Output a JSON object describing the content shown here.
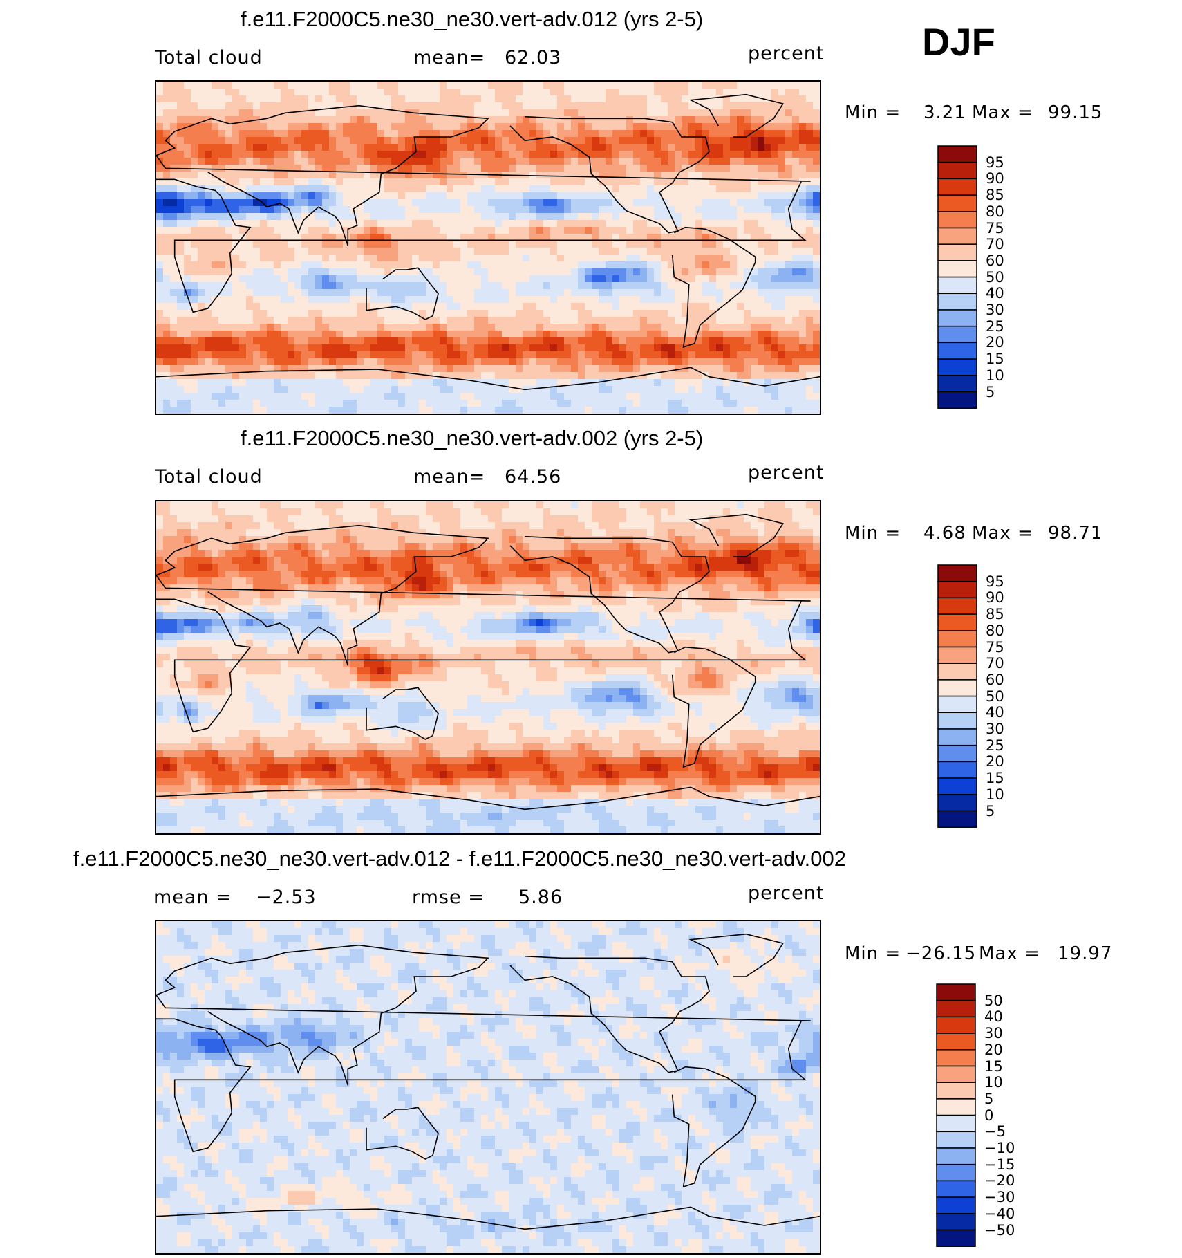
{
  "season": "DJF",
  "chart_data": [
    {
      "type": "heatmap",
      "title": "f.e11.F2000C5.ne30_ne30.vert-adv.012 (yrs 2-5)",
      "variable": "Total cloud",
      "stat_left": "mean=",
      "stat_left_value": "62.03",
      "units": "percent",
      "min_label": "Min =",
      "min_value": "3.21",
      "max_label": "Max =",
      "max_value": "99.15",
      "colorbar_levels": [
        "95",
        "90",
        "85",
        "80",
        "75",
        "70",
        "60",
        "50",
        "40",
        "30",
        "25",
        "20",
        "15",
        "10",
        "5"
      ],
      "colorbar_colors": [
        "#8b0a0a",
        "#b8200b",
        "#d9390f",
        "#ec5a24",
        "#f47e4e",
        "#f8a37e",
        "#fbcab0",
        "#fde8dc",
        "#dbe7f8",
        "#b7d0f6",
        "#8db2f2",
        "#5f8eee",
        "#3064e6",
        "#0d40d4",
        "#062aa3",
        "#021580"
      ],
      "range": [
        0,
        100
      ]
    },
    {
      "type": "heatmap",
      "title": "f.e11.F2000C5.ne30_ne30.vert-adv.002 (yrs 2-5)",
      "variable": "Total cloud",
      "stat_left": "mean=",
      "stat_left_value": "64.56",
      "units": "percent",
      "min_label": "Min =",
      "min_value": "4.68",
      "max_label": "Max =",
      "max_value": "98.71",
      "colorbar_levels": [
        "95",
        "90",
        "85",
        "80",
        "75",
        "70",
        "60",
        "50",
        "40",
        "30",
        "25",
        "20",
        "15",
        "10",
        "5"
      ],
      "colorbar_colors": [
        "#8b0a0a",
        "#b8200b",
        "#d9390f",
        "#ec5a24",
        "#f47e4e",
        "#f8a37e",
        "#fbcab0",
        "#fde8dc",
        "#dbe7f8",
        "#b7d0f6",
        "#8db2f2",
        "#5f8eee",
        "#3064e6",
        "#0d40d4",
        "#062aa3",
        "#021580"
      ],
      "range": [
        0,
        100
      ]
    },
    {
      "type": "heatmap",
      "title": "f.e11.F2000C5.ne30_ne30.vert-adv.012 - f.e11.F2000C5.ne30_ne30.vert-adv.002",
      "stat_left": "mean =",
      "stat_left_value": "−2.53",
      "stat_right": "rmse =",
      "stat_right_value": "5.86",
      "units": "percent",
      "min_label": "Min =",
      "min_value": "−26.15",
      "max_label": "Max =",
      "max_value": "19.97",
      "colorbar_levels": [
        "50",
        "40",
        "30",
        "20",
        "15",
        "10",
        "5",
        "0",
        "−5",
        "−10",
        "−15",
        "−20",
        "−30",
        "−40",
        "−50"
      ],
      "colorbar_colors": [
        "#8b0a0a",
        "#b8200b",
        "#d9390f",
        "#ec5a24",
        "#f47e4e",
        "#f8a37e",
        "#fbcab0",
        "#fde8dc",
        "#dbe7f8",
        "#b7d0f6",
        "#8db2f2",
        "#5f8eee",
        "#3064e6",
        "#0d40d4",
        "#062aa3",
        "#021580"
      ],
      "range": [
        -50,
        50
      ]
    }
  ]
}
